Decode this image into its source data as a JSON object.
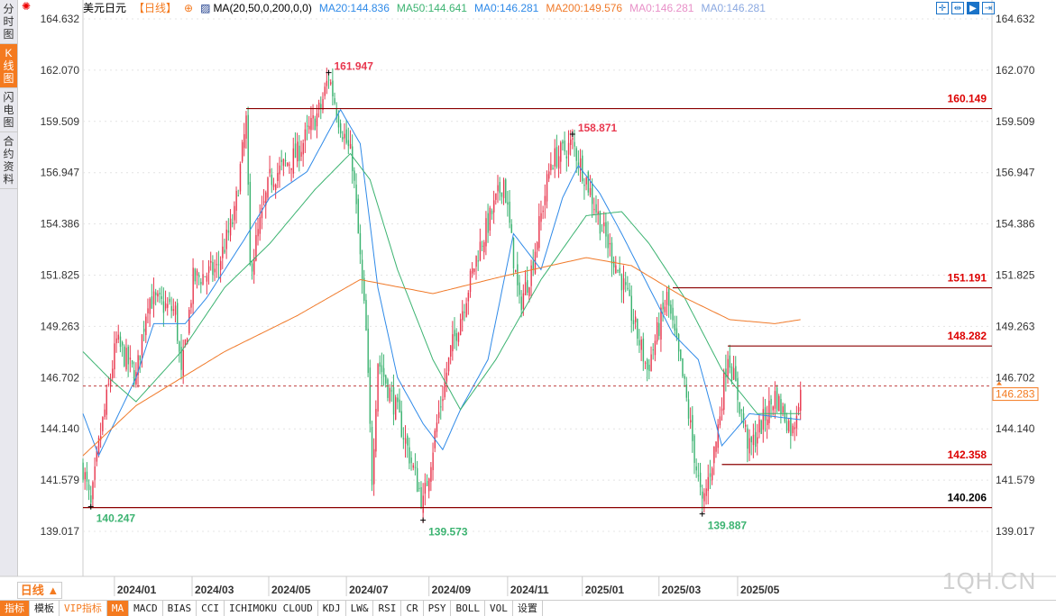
{
  "side_tabs": [
    "分时图",
    "K线图",
    "闪电图",
    "合约资料"
  ],
  "header": {
    "symbol": "美元日元",
    "period": "【日线】",
    "indicator": "MA(20,50,0,200,0,0)",
    "ma20": "MA20:144.836",
    "ma50": "MA50:144.641",
    "ma0a": "MA0:146.281",
    "ma200": "MA200:149.576",
    "ma0b": "MA0:146.281",
    "ma0c": "MA0:146.281"
  },
  "tools": [
    "crosshair",
    "zoom-range",
    "play",
    "exit"
  ],
  "period_button": "日线 ▲",
  "bottom_tabs": [
    "指标",
    "模板",
    "VIP指标",
    "MA",
    "MACD",
    "BIAS",
    "CCI",
    "ICHIMOKU CLOUD",
    "KDJ",
    "LW&",
    "RSI",
    "CR",
    "PSY",
    "BOLL",
    "VOL",
    "设置"
  ],
  "watermark": "1QH.CN",
  "colors": {
    "up": "#e8384f",
    "down": "#3cb371",
    "ma20": "#2f8ae8",
    "ma50": "#3cb371",
    "ma200": "#f07a2a",
    "level": "#8b0000"
  },
  "chart_data": {
    "type": "candlestick",
    "ylim": [
      139.017,
      164.632
    ],
    "yticks": [
      "164.632",
      "162.070",
      "159.509",
      "156.947",
      "154.386",
      "151.825",
      "149.263",
      "146.702",
      "144.140",
      "141.579",
      "139.017"
    ],
    "xticks": [
      {
        "label": "2024/01",
        "day": 16
      },
      {
        "label": "2024/03",
        "day": 55.5
      },
      {
        "label": "2024/05",
        "day": 94.5
      },
      {
        "label": "2024/07",
        "day": 134
      },
      {
        "label": "2024/09",
        "day": 176
      },
      {
        "label": "2024/11",
        "day": 216
      },
      {
        "label": "2025/01",
        "day": 254
      },
      {
        "label": "2025/03",
        "day": 293
      },
      {
        "label": "2025/05",
        "day": 333
      }
    ],
    "days": 366,
    "close_anchors": [
      [
        0,
        142.2
      ],
      [
        4,
        140.2
      ],
      [
        8,
        143.3
      ],
      [
        17,
        148.5
      ],
      [
        27,
        146.7
      ],
      [
        33,
        150.7
      ],
      [
        47,
        150.0
      ],
      [
        50,
        146.7
      ],
      [
        56,
        151.6
      ],
      [
        68,
        152.1
      ],
      [
        77,
        154.8
      ],
      [
        83,
        159.5
      ],
      [
        85,
        152.1
      ],
      [
        95,
        156.6
      ],
      [
        109,
        157.9
      ],
      [
        121,
        160.2
      ],
      [
        125,
        161.8
      ],
      [
        130,
        159.7
      ],
      [
        137,
        157.5
      ],
      [
        144,
        148.9
      ],
      [
        147,
        141.7
      ],
      [
        150,
        147.6
      ],
      [
        160,
        144.9
      ],
      [
        173,
        140.4
      ],
      [
        180,
        144.4
      ],
      [
        187,
        148.0
      ],
      [
        201,
        153.0
      ],
      [
        214,
        156.6
      ],
      [
        222,
        150.3
      ],
      [
        228,
        152.1
      ],
      [
        238,
        157.5
      ],
      [
        249,
        158.4
      ],
      [
        256,
        156.6
      ],
      [
        265,
        153.9
      ],
      [
        274,
        151.6
      ],
      [
        287,
        147.1
      ],
      [
        297,
        150.7
      ],
      [
        306,
        146.2
      ],
      [
        315,
        140.2
      ],
      [
        322,
        143.5
      ],
      [
        328,
        148.0
      ],
      [
        339,
        143.1
      ],
      [
        352,
        145.8
      ],
      [
        361,
        144.0
      ],
      [
        365,
        146.3
      ]
    ],
    "ma20": [
      [
        0,
        144.9
      ],
      [
        8,
        142.8
      ],
      [
        27,
        146.7
      ],
      [
        36,
        149.4
      ],
      [
        52,
        149.4
      ],
      [
        63,
        150.7
      ],
      [
        82,
        153.6
      ],
      [
        95,
        155.7
      ],
      [
        114,
        157.0
      ],
      [
        131,
        160.1
      ],
      [
        141,
        158.4
      ],
      [
        150,
        151.2
      ],
      [
        160,
        146.7
      ],
      [
        173,
        144.4
      ],
      [
        183,
        143.1
      ],
      [
        192,
        145.1
      ],
      [
        206,
        147.6
      ],
      [
        219,
        153.9
      ],
      [
        233,
        152.1
      ],
      [
        244,
        155.7
      ],
      [
        252,
        157.3
      ],
      [
        263,
        155.9
      ],
      [
        274,
        153.9
      ],
      [
        288,
        151.2
      ],
      [
        300,
        148.9
      ],
      [
        313,
        147.6
      ],
      [
        325,
        143.3
      ],
      [
        339,
        144.9
      ],
      [
        365,
        144.6
      ]
    ],
    "ma50": [
      [
        0,
        148.0
      ],
      [
        13,
        146.7
      ],
      [
        27,
        145.5
      ],
      [
        50,
        148.0
      ],
      [
        72,
        151.2
      ],
      [
        95,
        153.4
      ],
      [
        118,
        156.1
      ],
      [
        136,
        157.9
      ],
      [
        146,
        156.6
      ],
      [
        160,
        152.1
      ],
      [
        178,
        147.6
      ],
      [
        192,
        145.1
      ],
      [
        210,
        147.6
      ],
      [
        233,
        151.6
      ],
      [
        256,
        154.8
      ],
      [
        274,
        155.0
      ],
      [
        288,
        153.4
      ],
      [
        306,
        150.7
      ],
      [
        325,
        147.1
      ],
      [
        343,
        144.9
      ],
      [
        365,
        144.9
      ]
    ],
    "ma200": [
      [
        0,
        142.8
      ],
      [
        27,
        145.3
      ],
      [
        72,
        148.0
      ],
      [
        109,
        149.8
      ],
      [
        141,
        151.6
      ],
      [
        178,
        150.9
      ],
      [
        215,
        151.8
      ],
      [
        256,
        152.7
      ],
      [
        279,
        152.3
      ],
      [
        306,
        150.7
      ],
      [
        329,
        149.6
      ],
      [
        352,
        149.4
      ],
      [
        365,
        149.6
      ]
    ],
    "levels": [
      {
        "value": 160.149,
        "label": "160.149",
        "from_day": 83
      },
      {
        "value": 151.191,
        "label": "151.191",
        "from_day": 300
      },
      {
        "value": 148.282,
        "label": "148.282",
        "from_day": 328
      },
      {
        "value": 142.358,
        "label": "142.358",
        "from_day": 325
      },
      {
        "value": 140.206,
        "label": "140.206",
        "from_day": 0
      }
    ],
    "annotations": [
      {
        "label": "161.947",
        "day": 125,
        "value": 161.947,
        "kind": "high"
      },
      {
        "label": "158.871",
        "day": 249,
        "value": 158.871,
        "kind": "high"
      },
      {
        "label": "140.247",
        "day": 4,
        "value": 140.247,
        "kind": "low"
      },
      {
        "label": "139.573",
        "day": 173,
        "value": 139.573,
        "kind": "low"
      },
      {
        "label": "139.887",
        "day": 315,
        "value": 139.887,
        "kind": "low"
      }
    ],
    "current": {
      "value": 146.283,
      "label": "146.283"
    }
  }
}
